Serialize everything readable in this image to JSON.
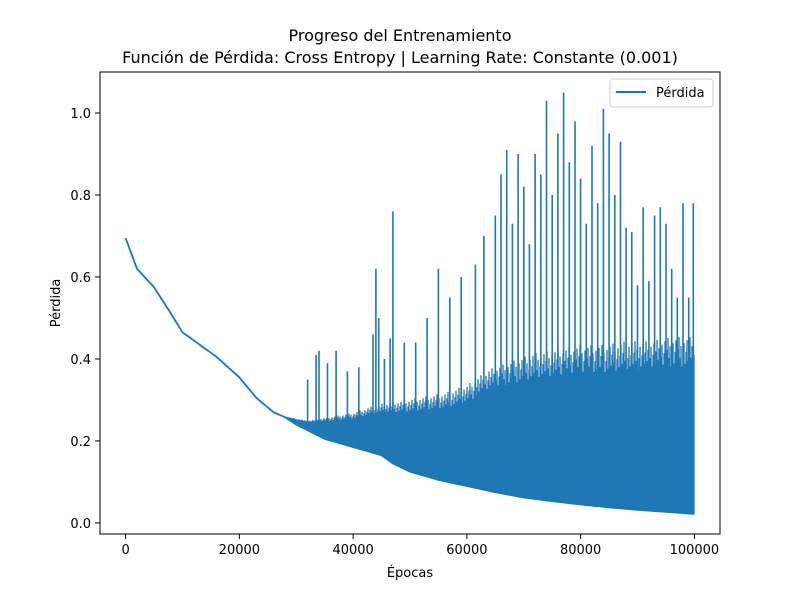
{
  "chart_data": {
    "type": "line",
    "title": "Progreso del Entrenamiento",
    "subtitle": "Función de Pérdida: Cross Entropy | Learning Rate: Constante (0.001)",
    "xlabel": "Épocas",
    "ylabel": "Pérdida",
    "xlim": [
      -4500,
      104500
    ],
    "ylim": [
      -0.027,
      1.1
    ],
    "xticks": [
      0,
      20000,
      40000,
      60000,
      80000,
      100000
    ],
    "yticks": [
      0.0,
      0.2,
      0.4,
      0.6,
      0.8,
      1.0
    ],
    "ytick_labels": [
      "0.0",
      "0.2",
      "0.4",
      "0.6",
      "0.8",
      "1.0"
    ],
    "grid": false,
    "legend_position": "top-right",
    "series": [
      {
        "name": "Pérdida",
        "color": "#1f77b4",
        "baseline": {
          "x": [
            0,
            2000,
            5000,
            8000,
            10000,
            13000,
            16000,
            18000,
            20000,
            23000,
            26000,
            28000,
            30000,
            35000,
            40000,
            45000,
            47000,
            50000,
            55000,
            60000,
            65000,
            70000,
            75000,
            80000,
            85000,
            90000,
            95000,
            100000
          ],
          "y": [
            0.695,
            0.62,
            0.575,
            0.51,
            0.465,
            0.435,
            0.405,
            0.38,
            0.355,
            0.305,
            0.27,
            0.258,
            0.24,
            0.205,
            0.185,
            0.165,
            0.145,
            0.125,
            0.105,
            0.09,
            0.075,
            0.062,
            0.053,
            0.045,
            0.038,
            0.032,
            0.027,
            0.022
          ]
        },
        "oscillation_top": {
          "x": [
            28000,
            32000,
            36000,
            40000,
            44000,
            48000,
            52000,
            56000,
            60000,
            64000,
            68000,
            72000,
            76000,
            80000,
            84000,
            88000,
            92000,
            96000,
            100000
          ],
          "y": [
            0.26,
            0.25,
            0.26,
            0.27,
            0.29,
            0.3,
            0.31,
            0.32,
            0.34,
            0.38,
            0.4,
            0.42,
            0.43,
            0.44,
            0.44,
            0.45,
            0.45,
            0.46,
            0.46
          ]
        },
        "spikes": {
          "x": [
            32000,
            33500,
            34000,
            35500,
            37000,
            39000,
            41000,
            43500,
            44000,
            44500,
            45500,
            46500,
            47000,
            49000,
            51000,
            53000,
            55000,
            57000,
            59000,
            61500,
            63000,
            65000,
            66000,
            67000,
            68000,
            69000,
            70000,
            71000,
            72000,
            73000,
            74000,
            75000,
            76000,
            77000,
            78000,
            79000,
            80000,
            81000,
            82000,
            83000,
            84000,
            85000,
            86000,
            87000,
            88000,
            89000,
            90000,
            91000,
            92000,
            93000,
            94000,
            95000,
            96000,
            97000,
            98000,
            99000,
            99800
          ],
          "y": [
            0.35,
            0.41,
            0.42,
            0.39,
            0.42,
            0.37,
            0.38,
            0.46,
            0.62,
            0.5,
            0.4,
            0.45,
            0.76,
            0.44,
            0.44,
            0.5,
            0.62,
            0.55,
            0.6,
            0.63,
            0.7,
            0.75,
            0.85,
            0.91,
            0.73,
            0.9,
            0.82,
            0.68,
            0.9,
            0.85,
            1.03,
            0.8,
            0.95,
            1.05,
            0.88,
            0.98,
            0.84,
            0.73,
            0.92,
            0.78,
            1.01,
            0.95,
            0.8,
            0.93,
            0.72,
            0.71,
            0.58,
            0.77,
            0.59,
            0.75,
            0.77,
            0.73,
            0.62,
            0.55,
            0.78,
            0.55,
            0.78
          ]
        }
      }
    ]
  }
}
